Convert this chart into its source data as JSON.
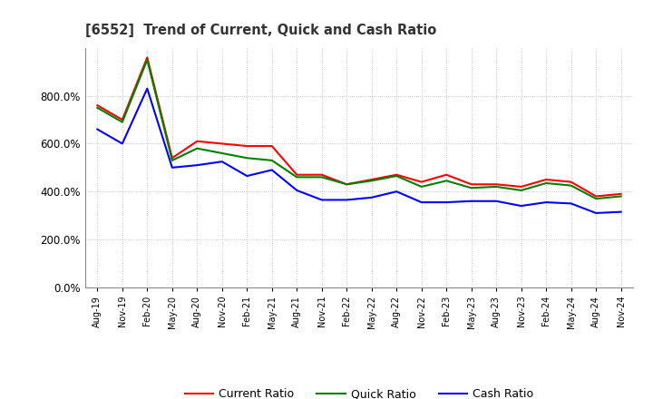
{
  "title": "[6552]  Trend of Current, Quick and Cash Ratio",
  "labels": [
    "Aug-19",
    "Nov-19",
    "Feb-20",
    "May-20",
    "Aug-20",
    "Nov-20",
    "Feb-21",
    "May-21",
    "Aug-21",
    "Nov-21",
    "Feb-22",
    "May-22",
    "Aug-22",
    "Nov-22",
    "Feb-23",
    "May-23",
    "Aug-23",
    "Nov-23",
    "Feb-24",
    "May-24",
    "Aug-24",
    "Nov-24"
  ],
  "current_ratio": [
    760,
    700,
    960,
    540,
    610,
    600,
    590,
    590,
    470,
    470,
    430,
    450,
    470,
    440,
    470,
    430,
    430,
    420,
    450,
    440,
    380,
    390
  ],
  "quick_ratio": [
    750,
    690,
    950,
    530,
    580,
    560,
    540,
    530,
    460,
    460,
    430,
    445,
    465,
    420,
    445,
    415,
    420,
    405,
    435,
    425,
    370,
    380
  ],
  "cash_ratio": [
    660,
    600,
    830,
    500,
    510,
    525,
    465,
    490,
    405,
    365,
    365,
    375,
    400,
    355,
    355,
    360,
    360,
    340,
    355,
    350,
    310,
    315
  ],
  "ylim": [
    0,
    1000
  ],
  "yticks": [
    0,
    200,
    400,
    600,
    800
  ],
  "current_color": "#ff0000",
  "quick_color": "#008000",
  "cash_color": "#0000ff",
  "line_width": 1.5,
  "background_color": "#ffffff",
  "plot_bg_color": "#ffffff",
  "grid_color": "#999999",
  "legend_labels": [
    "Current Ratio",
    "Quick Ratio",
    "Cash Ratio"
  ]
}
